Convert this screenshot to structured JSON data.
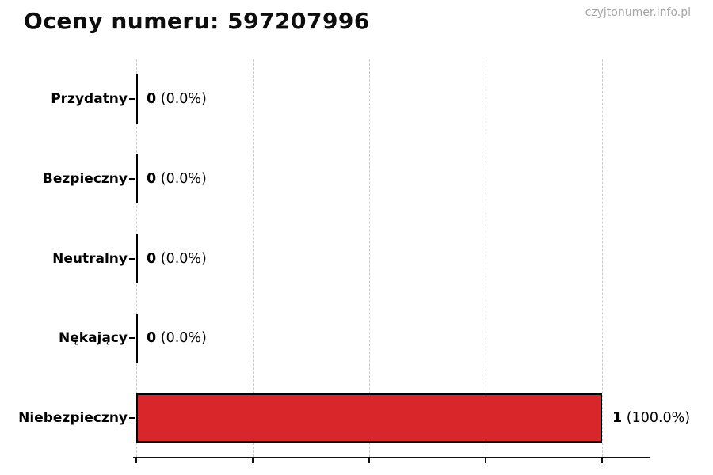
{
  "page": {
    "title": "Oceny numeru: 597207996",
    "watermark": "czyjtonumer.info.pl"
  },
  "colors": {
    "bar_fill": "#d9262b",
    "bar_edge": "#000000",
    "grid": "#cccccc",
    "title_text": "#0d0d0d",
    "watermark_text": "#a6a6a6"
  },
  "chart_data": {
    "type": "bar",
    "orientation": "horizontal",
    "title": "Oceny numeru: 597207996",
    "categories": [
      "Przydatny",
      "Bezpieczny",
      "Neutralny",
      "Nękający",
      "Niebezpieczny"
    ],
    "values": [
      0,
      0,
      0,
      0,
      1
    ],
    "value_labels": [
      {
        "value": "0",
        "percent": "(0.0%)"
      },
      {
        "value": "0",
        "percent": "(0.0%)"
      },
      {
        "value": "0",
        "percent": "(0.0%)"
      },
      {
        "value": "0",
        "percent": "(0.0%)"
      },
      {
        "value": "1",
        "percent": "(100.0%)"
      }
    ],
    "xlabel": "",
    "ylabel": "",
    "xlim": [
      0,
      1
    ],
    "x_ticks": [
      0,
      0.25,
      0.5,
      0.75,
      1.0
    ],
    "x_tick_labels_visible": false,
    "grid": {
      "axis": "x",
      "style": "dashed"
    },
    "legend": "none",
    "bar_color": "#d9262b",
    "bar_edge_color": "#000000"
  }
}
